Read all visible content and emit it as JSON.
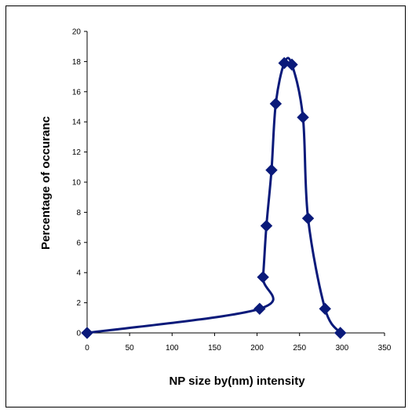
{
  "chart_data": {
    "type": "line",
    "xlabel": "NP size by(nm) intensity",
    "ylabel": "Percentage of occuranc",
    "xlim": [
      0,
      350
    ],
    "ylim": [
      0,
      20
    ],
    "x_ticks": [
      "0",
      "50",
      "100",
      "150",
      "200",
      "250",
      "300",
      "350"
    ],
    "y_ticks": [
      "0",
      "2",
      "4",
      "6",
      "8",
      "10",
      "12",
      "14",
      "16",
      "18",
      "20"
    ],
    "grid": false,
    "legend": "none",
    "series": [
      {
        "color": "#0a1a7a",
        "marker": "diamond",
        "points": [
          [
            0,
            0
          ],
          [
            203,
            1.6
          ],
          [
            207,
            3.7
          ],
          [
            211,
            7.1
          ],
          [
            217,
            10.8
          ],
          [
            222,
            15.2
          ],
          [
            232,
            17.9
          ],
          [
            241,
            17.8
          ],
          [
            254,
            14.3
          ],
          [
            260,
            7.6
          ],
          [
            280,
            1.6
          ],
          [
            298,
            0
          ]
        ]
      }
    ]
  }
}
